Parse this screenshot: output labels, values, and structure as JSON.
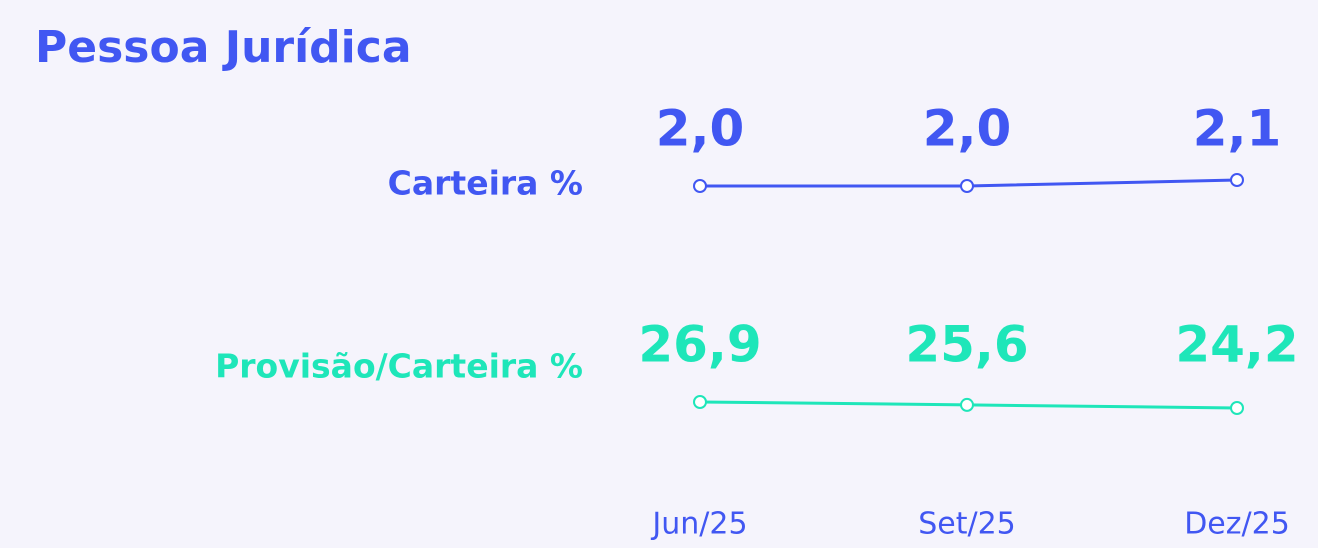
{
  "chart_data": {
    "type": "line",
    "title": "Pessoa Jurídica",
    "categories": [
      "Jun/25",
      "Set/25",
      "Dez/25"
    ],
    "series": [
      {
        "name": "Carteira %",
        "color": "#4157f2",
        "values": [
          2.0,
          2.0,
          2.1
        ],
        "value_labels": [
          "2,0",
          "2,0",
          "2,1"
        ]
      },
      {
        "name": "Provisão/Carteira %",
        "color": "#1ee6b9",
        "values": [
          26.9,
          25.6,
          24.2
        ],
        "value_labels": [
          "26,9",
          "25,6",
          "24,2"
        ]
      }
    ]
  }
}
